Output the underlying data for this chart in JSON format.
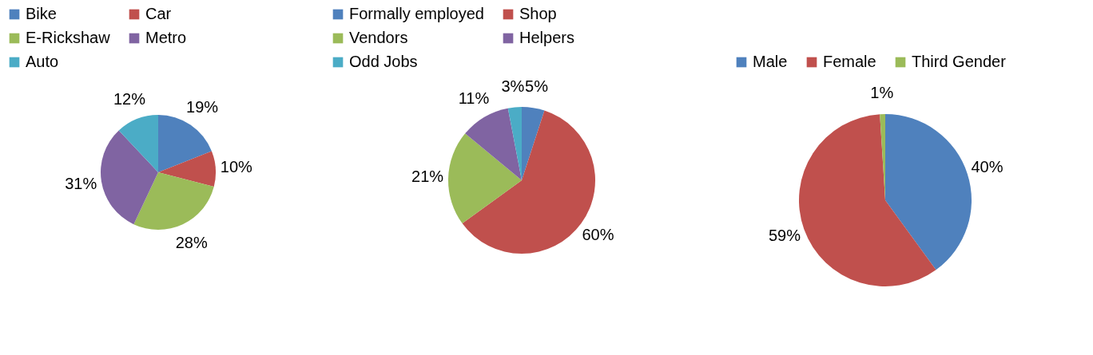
{
  "chart_data": [
    {
      "type": "pie",
      "categories": [
        "Bike",
        "Car",
        "E-Rickshaw",
        "Metro",
        "Auto"
      ],
      "values": [
        19,
        10,
        28,
        31,
        12
      ],
      "value_labels": [
        "19%",
        "10%",
        "28%",
        "31%",
        "12%"
      ],
      "colors": [
        "#4f81bd",
        "#c0504d",
        "#9bbb59",
        "#8064a2",
        "#4bacc6"
      ],
      "legend": "top"
    },
    {
      "type": "pie",
      "categories": [
        "Formally employed",
        "Shop",
        "Vendors",
        "Helpers",
        "Odd Jobs"
      ],
      "values": [
        5,
        60,
        21,
        11,
        3
      ],
      "value_labels": [
        "5%",
        "60%",
        "21%",
        "11%",
        "3%"
      ],
      "colors": [
        "#4f81bd",
        "#c0504d",
        "#9bbb59",
        "#8064a2",
        "#4bacc6"
      ],
      "legend": "top"
    },
    {
      "type": "pie",
      "categories": [
        "Male",
        "Female",
        "Third Gender"
      ],
      "values": [
        40,
        59,
        1
      ],
      "value_labels": [
        "40%",
        "59%",
        "1%"
      ],
      "colors": [
        "#4f81bd",
        "#c0504d",
        "#9bbb59"
      ],
      "legend": "top"
    }
  ]
}
